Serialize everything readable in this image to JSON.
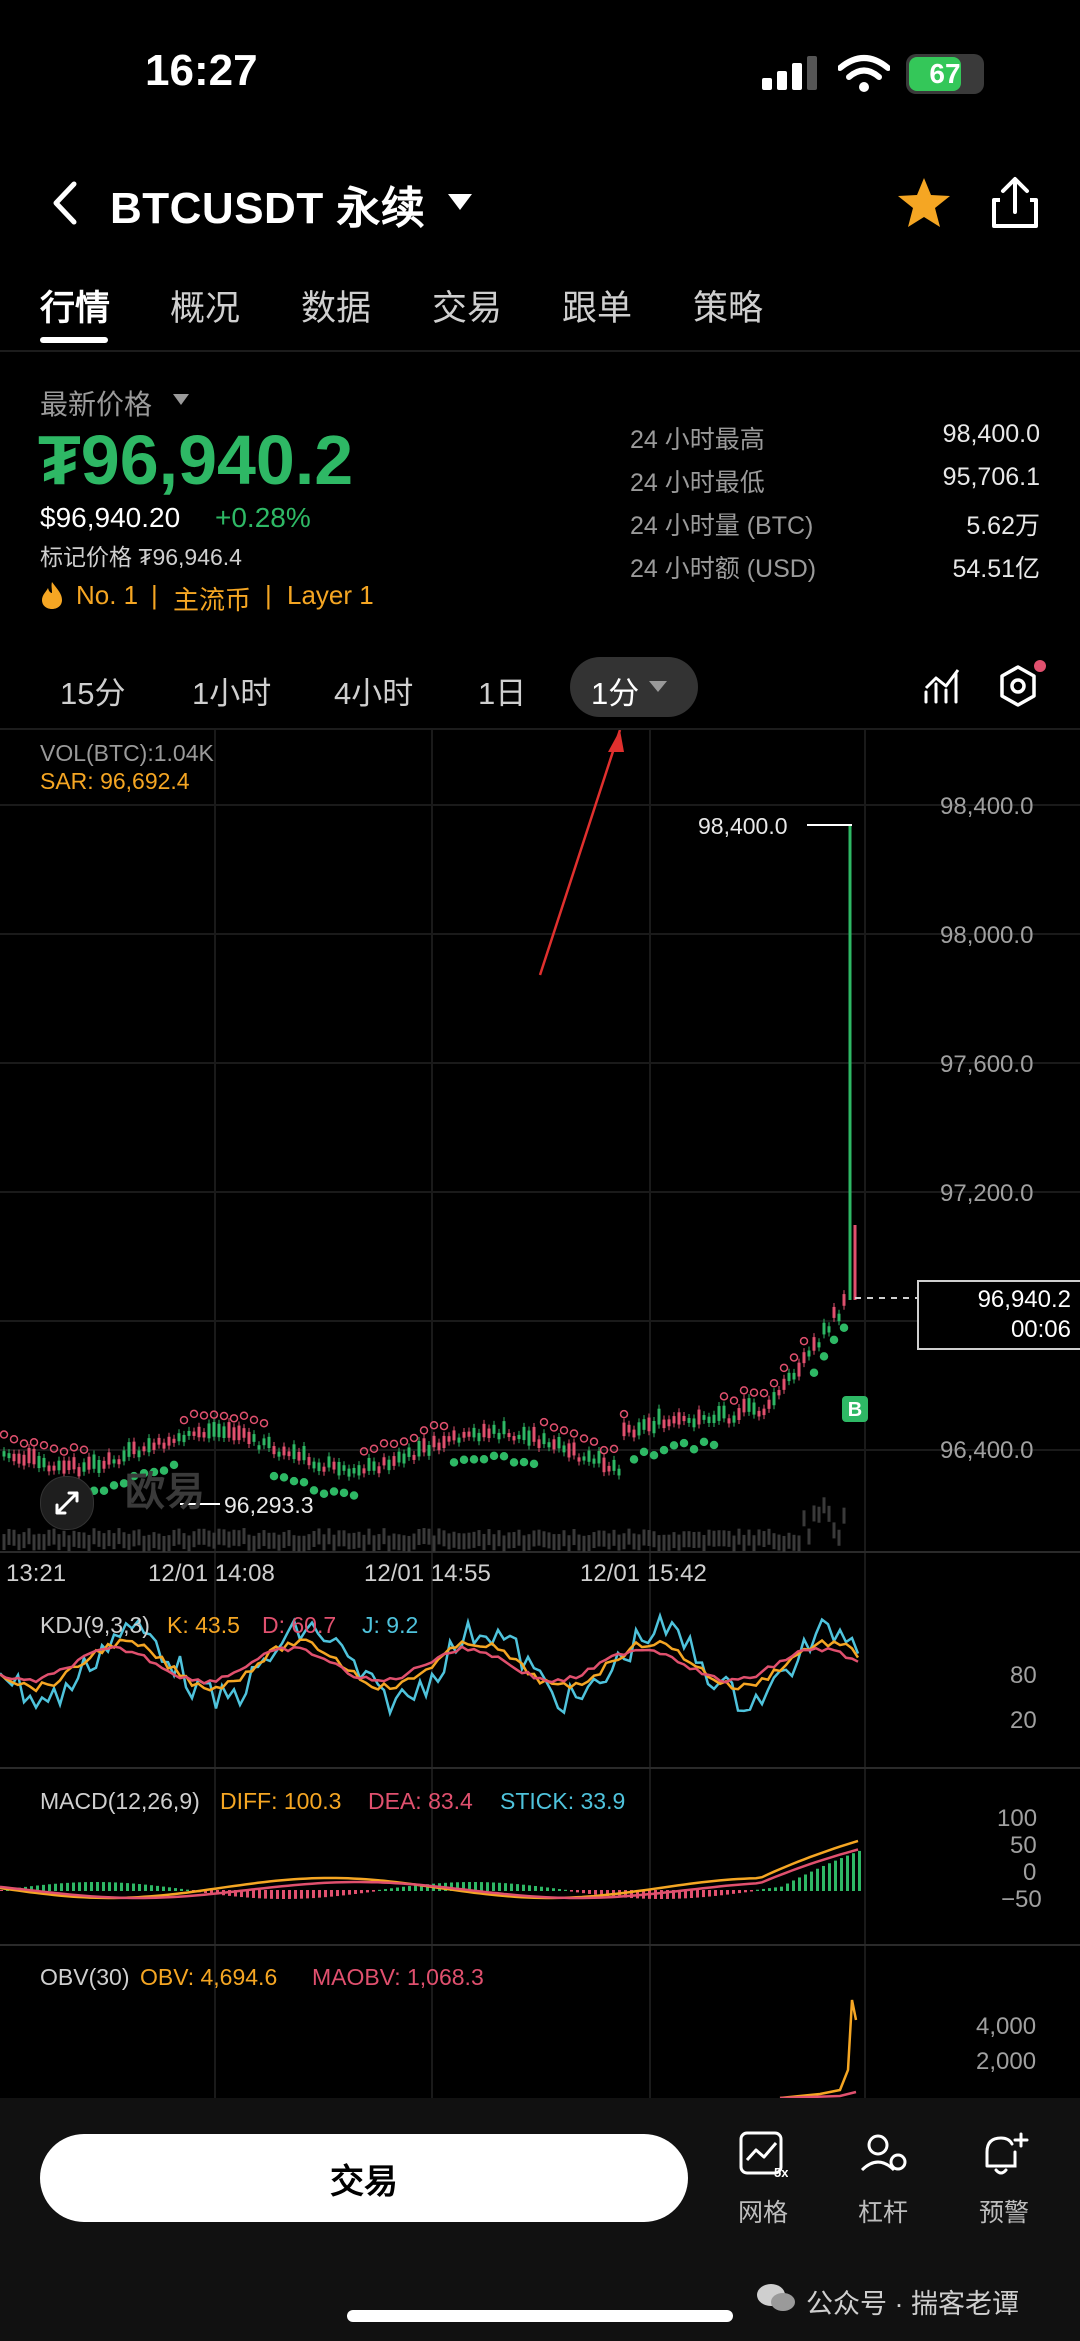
{
  "status": {
    "time": "16:27",
    "battery": "67"
  },
  "header": {
    "title": "BTCUSDT 永续"
  },
  "tabs": [
    "行情",
    "概况",
    "数据",
    "交易",
    "跟单",
    "策略"
  ],
  "price": {
    "latest_label": "最新价格",
    "main": "₮96,940.2",
    "usd": "$96,940.20",
    "change": "+0.28%",
    "mark": "标记价格 ₮96,946.4",
    "tags": [
      "No. 1",
      "|",
      "主流币",
      "|",
      "Layer 1"
    ]
  },
  "stats": [
    {
      "k": "24 小时最高",
      "v": "98,400.0"
    },
    {
      "k": "24 小时最低",
      "v": "95,706.1"
    },
    {
      "k": "24 小时量 (BTC)",
      "v": "5.62万"
    },
    {
      "k": "24 小时额 (USD)",
      "v": "54.51亿"
    }
  ],
  "timeframes": [
    "15分",
    "1小时",
    "4小时",
    "1日",
    "1分"
  ],
  "chart": {
    "vol": "VOL(BTC):1.04K",
    "sar": "SAR: 96,692.4",
    "y_labels": [
      "98,400.0",
      "98,000.0",
      "97,600.0",
      "97,200.0",
      "96,400.0"
    ],
    "high_marker": "98,400.0",
    "low_marker": "96,293.3",
    "current_price": "96,940.2",
    "countdown": "00:06",
    "x_labels": [
      "13:21",
      "12/01 14:08",
      "12/01 14:55",
      "12/01 15:42"
    ],
    "buy_marker": "B",
    "watermark": "欧易"
  },
  "kdj": {
    "name": "KDJ(9,3,3)",
    "k": "K: 43.5",
    "d": "D: 60.7",
    "j": "J: 9.2",
    "y": [
      "80",
      "20"
    ]
  },
  "macd": {
    "name": "MACD(12,26,9)",
    "diff": "DIFF: 100.3",
    "dea": "DEA: 83.4",
    "stick": "STICK: 33.9",
    "y": [
      "100",
      "50",
      "0",
      "−50"
    ]
  },
  "obv": {
    "name": "OBV(30)",
    "obv": "OBV: 4,694.6",
    "maobv": "MAOBV: 1,068.3",
    "y": [
      "4,000",
      "2,000"
    ]
  },
  "bottom": {
    "trade": "交易",
    "tools": [
      "网格",
      "杠杆",
      "预警"
    ],
    "grid_badge": "5x"
  },
  "footer_watermark": "公众号 · 揣客老谭",
  "colors": {
    "green": "#2eb865",
    "red": "#e0506e",
    "orange": "#f5a623",
    "cyan": "#4fc3dc",
    "pink": "#e0506e"
  }
}
